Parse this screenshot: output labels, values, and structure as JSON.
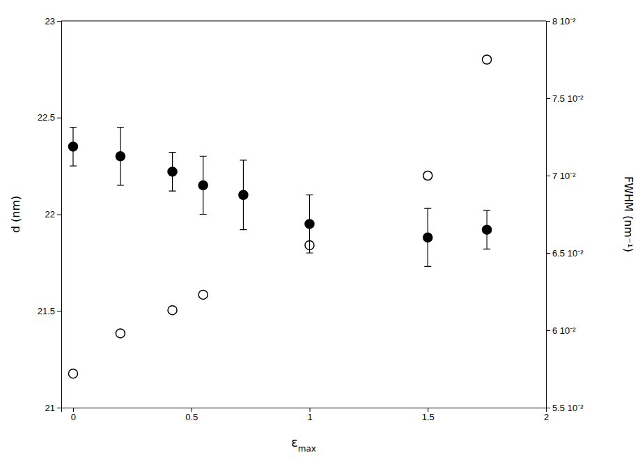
{
  "chart_data": {
    "type": "scatter",
    "x_label": "εmax",
    "y_label": "d (nm)",
    "y2_label": "FWHM (nm⁻¹)",
    "xlim": [
      -0.05,
      2
    ],
    "xticks": [
      0,
      0.5,
      1,
      1.5,
      2
    ],
    "ylim": [
      21,
      23
    ],
    "yticks": [
      21,
      21.5,
      22,
      22.5,
      23
    ],
    "y2lim": [
      0.055,
      0.08
    ],
    "y2ticks": [
      {
        "value": 0.055,
        "label": "5.5 10⁻²"
      },
      {
        "value": 0.06,
        "label": "6 10⁻²"
      },
      {
        "value": 0.065,
        "label": "6.5 10⁻²"
      },
      {
        "value": 0.07,
        "label": "7 10⁻²"
      },
      {
        "value": 0.075,
        "label": "7.5 10⁻²"
      },
      {
        "value": 0.08,
        "label": "8 10⁻²"
      }
    ],
    "grid": false,
    "series": [
      {
        "axis": "y2",
        "color": "#000000",
        "marker": "open-circle",
        "x": [
          0.0,
          0.2,
          0.42,
          0.55,
          1.0,
          1.5,
          1.75
        ],
        "values": [
          0.0572,
          0.0598,
          0.0613,
          0.0623,
          0.0655,
          0.07,
          0.0775
        ]
      },
      {
        "axis": "y",
        "color": "#000000",
        "marker": "circle",
        "x": [
          0.0,
          0.2,
          0.42,
          0.55,
          0.72,
          1.0,
          1.5,
          1.75
        ],
        "values": [
          22.35,
          22.3,
          22.22,
          22.15,
          22.1,
          21.95,
          21.88,
          21.92
        ],
        "error": [
          0.1,
          0.15,
          0.1,
          0.15,
          0.18,
          0.15,
          0.15,
          0.1
        ]
      }
    ]
  }
}
